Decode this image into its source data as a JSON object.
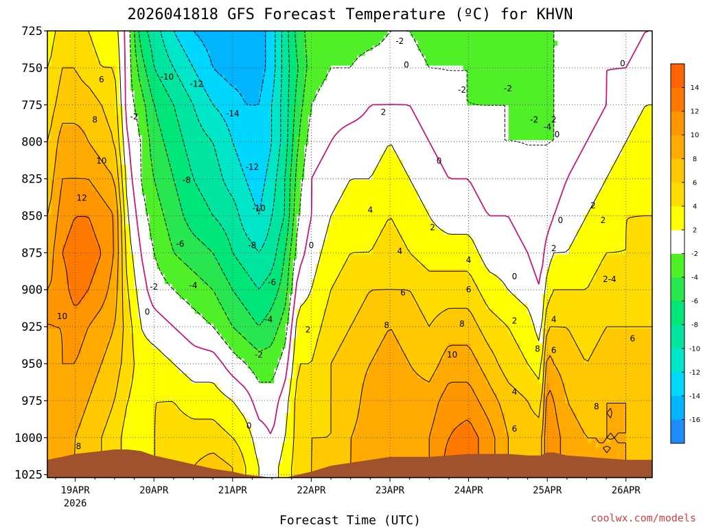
{
  "chart_data": {
    "type": "contour",
    "title": "2026041818 GFS Forecast Temperature (ºC) for KHVN",
    "xlabel": "Forecast Time (UTC)",
    "ylabel": "",
    "credit": "coolwx.com/models",
    "y_axis": {
      "unit": "hPa",
      "ticks": [
        725,
        750,
        775,
        800,
        825,
        850,
        875,
        900,
        925,
        950,
        975,
        1000,
        1025
      ],
      "ylim": [
        1027,
        725
      ]
    },
    "x_axis": {
      "unit": "forecast hours",
      "xlim": [
        -2.5,
        182
      ],
      "ticks": [
        {
          "label": "19APR",
          "sub": "2026",
          "hour": 6
        },
        {
          "label": "20APR",
          "sub": "",
          "hour": 30
        },
        {
          "label": "21APR",
          "sub": "",
          "hour": 54
        },
        {
          "label": "22APR",
          "sub": "",
          "hour": 78
        },
        {
          "label": "23APR",
          "sub": "",
          "hour": 102
        },
        {
          "label": "24APR",
          "sub": "",
          "hour": 126
        },
        {
          "label": "25APR",
          "sub": "",
          "hour": 150
        },
        {
          "label": "26APR",
          "sub": "",
          "hour": 174
        }
      ]
    },
    "colorbar": {
      "bins": [
        {
          "lo": -18,
          "hi": -16,
          "color": "#1e8cff"
        },
        {
          "lo": -16,
          "hi": -14,
          "color": "#00b4ff"
        },
        {
          "lo": -14,
          "hi": -12,
          "color": "#00d7ff"
        },
        {
          "lo": -12,
          "hi": -10,
          "color": "#00e6c8"
        },
        {
          "lo": -10,
          "hi": -8,
          "color": "#00e6a0"
        },
        {
          "lo": -8,
          "hi": -6,
          "color": "#00e678"
        },
        {
          "lo": -6,
          "hi": -4,
          "color": "#28e650"
        },
        {
          "lo": -4,
          "hi": -2,
          "color": "#50f028"
        },
        {
          "lo": -2,
          "hi": 2,
          "color": "#ffffff"
        },
        {
          "lo": 2,
          "hi": 4,
          "color": "#ffff00"
        },
        {
          "lo": 4,
          "hi": 6,
          "color": "#ffdc00"
        },
        {
          "lo": 6,
          "hi": 8,
          "color": "#ffc800"
        },
        {
          "lo": 8,
          "hi": 10,
          "color": "#ffaa00"
        },
        {
          "lo": 10,
          "hi": 12,
          "color": "#ff9600"
        },
        {
          "lo": 12,
          "hi": 14,
          "color": "#ff7800"
        },
        {
          "lo": 14,
          "hi": 16,
          "color": "#ff6400"
        }
      ],
      "tick_labels": [
        "14",
        "12",
        "10",
        "8",
        "6",
        "4",
        "2",
        "-2",
        "-4",
        "-6",
        "-8",
        "-10",
        "-12",
        "-14",
        "-16"
      ]
    },
    "ground_color": "#a0522d",
    "zero_line_color": "#c8147a",
    "temperature_profiles": {
      "levels_hPa": [
        725,
        750,
        775,
        800,
        825,
        850,
        875,
        900,
        925,
        950,
        975,
        1000,
        1020
      ],
      "times_h": [
        -2,
        2,
        6,
        10,
        14,
        18,
        22,
        26,
        30,
        36,
        42,
        48,
        54,
        58,
        62,
        66,
        70,
        74,
        78,
        84,
        90,
        96,
        102,
        108,
        114,
        120,
        126,
        132,
        138,
        144,
        148,
        150,
        152,
        156,
        162,
        168,
        174,
        180
      ],
      "values_C": [
        [
          3,
          4,
          5,
          6,
          7,
          8,
          9,
          10,
          10,
          9,
          9,
          8,
          8
        ],
        [
          5,
          6,
          7,
          9,
          10,
          11,
          12,
          11,
          10,
          10,
          10,
          9,
          8
        ],
        [
          5,
          6,
          7,
          9,
          10,
          12,
          13,
          13,
          11,
          10,
          9,
          8,
          8
        ],
        [
          4,
          5,
          7,
          8,
          10,
          12,
          13,
          12,
          10,
          9,
          8,
          7,
          7
        ],
        [
          3,
          4,
          6,
          7,
          9,
          11,
          12,
          11,
          9,
          8,
          7,
          6,
          6
        ],
        [
          3,
          4,
          5,
          6,
          8,
          10,
          10,
          9,
          8,
          7,
          6,
          5,
          5
        ],
        [
          -1,
          -1,
          -1,
          0,
          1,
          2,
          3,
          4,
          5,
          5,
          4,
          3,
          3
        ],
        [
          -7,
          -5,
          -3,
          -2,
          -2,
          -1,
          0,
          1,
          2,
          3,
          3,
          2,
          2
        ],
        [
          -9,
          -8,
          -6,
          -5,
          -4,
          -3,
          -2,
          -1,
          1,
          3,
          4,
          4,
          4
        ],
        [
          -12,
          -10,
          -8,
          -7,
          -6,
          -5,
          -4,
          -2,
          0,
          2,
          4,
          5,
          5
        ],
        [
          -14,
          -12,
          -10,
          -9,
          -8,
          -7,
          -5,
          -3,
          -1,
          1,
          3,
          5,
          6
        ],
        [
          -15,
          -14,
          -12,
          -10,
          -9,
          -8,
          -6,
          -4,
          -2,
          1,
          3,
          5,
          7
        ],
        [
          -16,
          -15,
          -13,
          -12,
          -11,
          -9,
          -8,
          -6,
          -4,
          -1,
          2,
          4,
          6
        ],
        [
          -16,
          -15,
          -14,
          -13,
          -12,
          -11,
          -9,
          -7,
          -5,
          -2,
          1,
          3,
          4
        ],
        [
          -15,
          -15,
          -14,
          -14,
          -13,
          -12,
          -10,
          -8,
          -6,
          -3,
          -1,
          1,
          2
        ],
        [
          -13,
          -13,
          -12,
          -12,
          -11,
          -10,
          -9,
          -7,
          -5,
          -3,
          -1,
          0,
          1
        ],
        [
          -9,
          -9,
          -9,
          -9,
          -8,
          -8,
          -6,
          -5,
          -3,
          -1,
          1,
          2,
          3
        ],
        [
          -5,
          -6,
          -5,
          -4,
          -3,
          -2,
          -1,
          1,
          3,
          4,
          5,
          5,
          5
        ],
        [
          -3,
          -3,
          -2,
          -1,
          0,
          0,
          1,
          2,
          3,
          4,
          5,
          6,
          6
        ],
        [
          -3,
          -2,
          -1,
          0,
          1,
          2,
          3,
          4,
          5,
          6,
          6,
          6,
          7
        ],
        [
          -3,
          -2,
          -1,
          1,
          2,
          3,
          4,
          5,
          6,
          7,
          7,
          8,
          8
        ],
        [
          -3,
          -1,
          0,
          1,
          2,
          3,
          4,
          6,
          7,
          8,
          9,
          9,
          9
        ],
        [
          -2,
          -1,
          0,
          2,
          3,
          4,
          5,
          6,
          8,
          9,
          10,
          10,
          10
        ],
        [
          -2,
          -1,
          0,
          1,
          2,
          3,
          4,
          6,
          7,
          8,
          9,
          9,
          9
        ],
        [
          -3,
          -2,
          -1,
          0,
          1,
          2,
          3,
          5,
          6,
          7,
          9,
          10,
          10
        ],
        [
          -3,
          -2,
          -2,
          -1,
          0,
          1,
          3,
          5,
          7,
          9,
          11,
          12,
          13
        ],
        [
          -3,
          -2,
          -2,
          -1,
          0,
          1,
          3,
          5,
          7,
          9,
          11,
          13,
          13
        ],
        [
          -3,
          -3,
          -2,
          -2,
          -1,
          0,
          1,
          3,
          5,
          7,
          9,
          11,
          11
        ],
        [
          -3,
          -3,
          -2,
          -2,
          -1,
          0,
          1,
          2,
          4,
          5,
          7,
          8,
          8
        ],
        [
          -3,
          -3,
          -3,
          -2,
          -2,
          -1,
          0,
          1,
          3,
          4,
          6,
          7,
          7
        ],
        [
          -3,
          -3,
          -3,
          -2,
          -2,
          -2,
          -1,
          0,
          1,
          3,
          5,
          7,
          7
        ],
        [
          -3,
          -3,
          -3,
          -2,
          -2,
          -1,
          1,
          3,
          6,
          9,
          11,
          12,
          12
        ],
        [
          -2,
          -2,
          -2,
          -2,
          -1,
          0,
          2,
          4,
          6,
          8,
          10,
          11,
          11
        ],
        [
          -2,
          -2,
          -1,
          -1,
          0,
          1,
          2,
          4,
          6,
          7,
          8,
          9,
          9
        ],
        [
          -1,
          -1,
          -1,
          0,
          1,
          2,
          3,
          4,
          5,
          6,
          7,
          8,
          8
        ],
        [
          -1,
          0,
          0,
          1,
          2,
          3,
          4,
          5,
          6,
          7,
          8,
          8,
          8
        ],
        [
          -1,
          0,
          1,
          2,
          3,
          4,
          4,
          5,
          6,
          7,
          8,
          8,
          8
        ],
        [
          0,
          1,
          2,
          3,
          3,
          4,
          5,
          5,
          6,
          7,
          7,
          7,
          7
        ]
      ]
    },
    "ground_surface": {
      "hours": [
        -2.5,
        2,
        6,
        10,
        14,
        18,
        22,
        26,
        30,
        36,
        42,
        48,
        54,
        58,
        62,
        66,
        70,
        74,
        78,
        84,
        90,
        96,
        102,
        108,
        114,
        120,
        126,
        132,
        138,
        144,
        148,
        150,
        152,
        156,
        162,
        168,
        174,
        182
      ],
      "pressure_hPa": [
        1015,
        1013,
        1011,
        1010,
        1009,
        1008,
        1008,
        1009,
        1012,
        1015,
        1018,
        1021,
        1023,
        1025,
        1026,
        1027,
        1027,
        1025,
        1023,
        1019,
        1017,
        1015,
        1013,
        1013,
        1013,
        1012,
        1011,
        1011,
        1011,
        1012,
        1012,
        1010,
        1010,
        1012,
        1013,
        1014,
        1015,
        1015
      ]
    },
    "contour_labels": [
      {
        "text": "12",
        "hour": 8,
        "p": 838
      },
      {
        "text": "10",
        "hour": 14,
        "p": 813
      },
      {
        "text": "8",
        "hour": 12,
        "p": 785
      },
      {
        "text": "6",
        "hour": 14,
        "p": 758
      },
      {
        "text": "10",
        "hour": 2,
        "p": 918
      },
      {
        "text": "8",
        "hour": 7,
        "p": 1006
      },
      {
        "text": "-2",
        "hour": 24,
        "p": 783
      },
      {
        "text": "-10",
        "hour": 34,
        "p": 756
      },
      {
        "text": "-12",
        "hour": 43,
        "p": 761
      },
      {
        "text": "-14",
        "hour": 54,
        "p": 781
      },
      {
        "text": "-12",
        "hour": 60,
        "p": 817
      },
      {
        "text": "-8",
        "hour": 40,
        "p": 826
      },
      {
        "text": "-10",
        "hour": 62,
        "p": 845
      },
      {
        "text": "-8",
        "hour": 60,
        "p": 870
      },
      {
        "text": "-6",
        "hour": 38,
        "p": 869
      },
      {
        "text": "-6",
        "hour": 66,
        "p": 895
      },
      {
        "text": "-4",
        "hour": 42,
        "p": 897
      },
      {
        "text": "-4",
        "hour": 65,
        "p": 920
      },
      {
        "text": "-2",
        "hour": 30,
        "p": 898
      },
      {
        "text": "-2",
        "hour": 62,
        "p": 944
      },
      {
        "text": "0",
        "hour": 28,
        "p": 915
      },
      {
        "text": "0",
        "hour": 59,
        "p": 992
      },
      {
        "text": "0",
        "hour": 78,
        "p": 870
      },
      {
        "text": "2",
        "hour": 77,
        "p": 927
      },
      {
        "text": "-2",
        "hour": 105,
        "p": 732
      },
      {
        "text": "0",
        "hour": 107,
        "p": 748
      },
      {
        "text": "2",
        "hour": 100,
        "p": 780
      },
      {
        "text": "0",
        "hour": 117,
        "p": 813
      },
      {
        "text": "4",
        "hour": 96,
        "p": 846
      },
      {
        "text": "2",
        "hour": 115,
        "p": 858
      },
      {
        "text": "4",
        "hour": 105,
        "p": 874
      },
      {
        "text": "6",
        "hour": 106,
        "p": 902
      },
      {
        "text": "8",
        "hour": 101,
        "p": 924
      },
      {
        "text": "-2",
        "hour": 124,
        "p": 765
      },
      {
        "text": "-2",
        "hour": 138,
        "p": 764
      },
      {
        "text": "4",
        "hour": 126,
        "p": 880
      },
      {
        "text": "6",
        "hour": 126,
        "p": 900
      },
      {
        "text": "8",
        "hour": 124,
        "p": 923
      },
      {
        "text": "10",
        "hour": 121,
        "p": 944
      },
      {
        "text": "0",
        "hour": 140,
        "p": 891
      },
      {
        "text": "2",
        "hour": 140,
        "p": 921
      },
      {
        "text": "4",
        "hour": 140,
        "p": 969
      },
      {
        "text": "6",
        "hour": 140,
        "p": 994
      },
      {
        "text": "-2",
        "hour": 146,
        "p": 785
      },
      {
        "text": "-4",
        "hour": 150,
        "p": 790
      },
      {
        "text": "2",
        "hour": 152,
        "p": 785
      },
      {
        "text": "0",
        "hour": 153,
        "p": 795
      },
      {
        "text": "0",
        "hour": 154,
        "p": 853
      },
      {
        "text": "2",
        "hour": 152,
        "p": 872
      },
      {
        "text": "4",
        "hour": 152,
        "p": 920
      },
      {
        "text": "8",
        "hour": 147,
        "p": 940
      },
      {
        "text": "6",
        "hour": 152,
        "p": 941
      },
      {
        "text": "2",
        "hour": 164,
        "p": 843
      },
      {
        "text": "2",
        "hour": 167,
        "p": 853
      },
      {
        "text": "2-4",
        "hour": 169,
        "p": 893
      },
      {
        "text": "6",
        "hour": 176,
        "p": 933
      },
      {
        "text": "8",
        "hour": 165,
        "p": 979
      },
      {
        "text": "0",
        "hour": 173,
        "p": 747
      }
    ]
  }
}
